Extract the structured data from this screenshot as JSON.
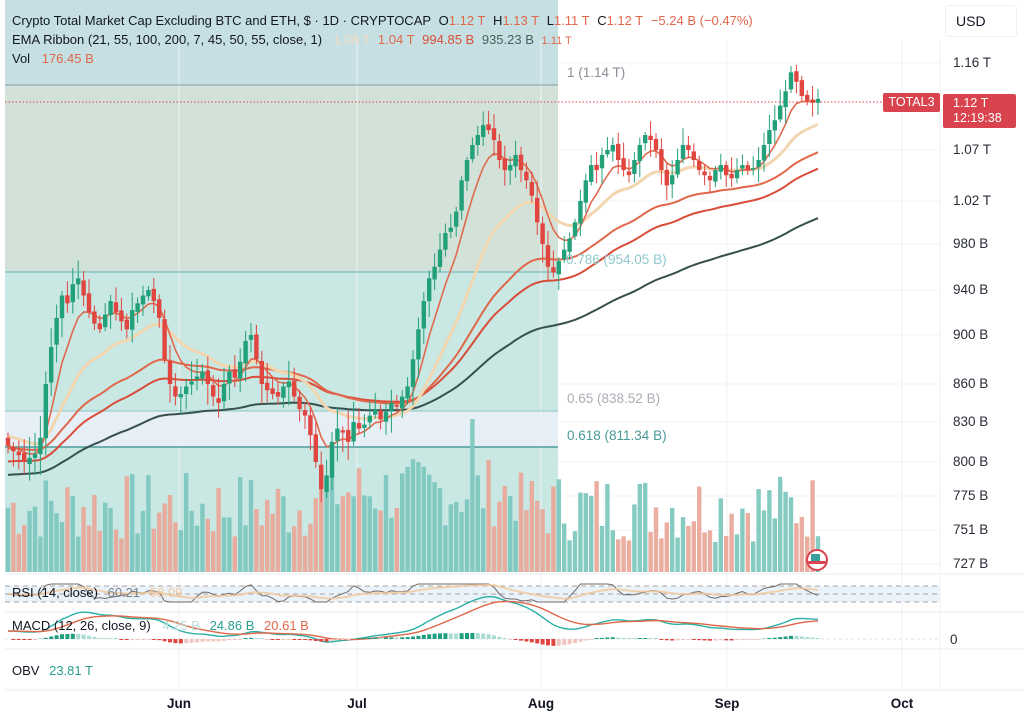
{
  "header": {
    "symbol_title": "Crypto Total Market Cap Excluding BTC and ETH, $ · 1D · CRYPTOCAP",
    "ohlc": {
      "o_label": "O",
      "o_value": "1.12 T",
      "h_label": "H",
      "h_value": "1.13 T",
      "l_label": "L",
      "l_value": "1.11 T",
      "c_label": "C",
      "c_value": "1.12 T",
      "change": "−5.24 B (−0.47%)"
    },
    "ema_ribbon": {
      "label": "EMA Ribbon (21, 55, 100, 200, 7, 45, 50, 55, close, 1)",
      "values": [
        "1.08 T",
        "1.04 T",
        "994.85 B",
        "935.23 B",
        "1.11 T"
      ]
    },
    "vol": {
      "label": "Vol",
      "value": "176.45 B"
    }
  },
  "currency_button": "USD",
  "price_axis": {
    "labels": [
      "1.16 T",
      "1.07 T",
      "1.02 T",
      "980 B",
      "940 B",
      "900 B",
      "860 B",
      "830 B",
      "800 B",
      "775 B",
      "751 B",
      "727 B"
    ]
  },
  "last_price_tag": {
    "symbol": "TOTAL3",
    "price": "1.12 T",
    "countdown": "12:19:38"
  },
  "fib_levels": [
    {
      "label": "1 (1.14 T)"
    },
    {
      "label": "0.786 (954.05 B)"
    },
    {
      "label": "0.65 (838.52 B)"
    },
    {
      "label": "0.618 (811.34 B)"
    }
  ],
  "rsi": {
    "label": "RSI (14, close)",
    "value": "60.21",
    "ma_value": "58.09"
  },
  "macd": {
    "label": "MACD (12, 26, close, 9)",
    "hist": "4.25 B",
    "macd": "24.86 B",
    "signal": "20.61 B",
    "zero_label": "0"
  },
  "obv": {
    "label": "OBV",
    "value": "23.81 T"
  },
  "time_axis": {
    "labels": [
      "Jun",
      "Jul",
      "Aug",
      "Sep",
      "Oct"
    ]
  },
  "colors": {
    "up": "#22a07a",
    "down": "#e0453f",
    "vol_up": "#7ec8bf",
    "vol_down": "#e9a99a",
    "ema_fast": "#e06a4f",
    "ema_slow_cream": "#f2d6b0",
    "ema_mid": "#e0674a",
    "ema_100": "#d94d3a",
    "ema_200": "#37504d",
    "price_tag": "#d9434e"
  },
  "chart_data": {
    "type": "candlestick",
    "title": "Crypto Total Market Cap Excluding BTC and ETH (TOTAL3), 1D",
    "xlabel": "",
    "ylabel": "USD",
    "x_ticks": [
      "Jun",
      "Jul",
      "Aug",
      "Sep",
      "Oct"
    ],
    "y_ticks": [
      "727 B",
      "751 B",
      "775 B",
      "800 B",
      "830 B",
      "860 B",
      "900 B",
      "940 B",
      "980 B",
      "1.02 T",
      "1.07 T",
      "1.16 T"
    ],
    "ylim": [
      715,
      1175
    ],
    "closes_billion": [
      812,
      808,
      805,
      800,
      803,
      806,
      818,
      860,
      890,
      915,
      935,
      928,
      945,
      950,
      935,
      920,
      910,
      905,
      918,
      930,
      920,
      912,
      905,
      922,
      928,
      935,
      940,
      930,
      915,
      880,
      860,
      850,
      852,
      858,
      862,
      866,
      870,
      860,
      850,
      845,
      860,
      870,
      865,
      878,
      895,
      900,
      880,
      860,
      855,
      852,
      850,
      858,
      862,
      850,
      840,
      835,
      820,
      800,
      780,
      790,
      815,
      825,
      822,
      815,
      830,
      825,
      828,
      835,
      840,
      832,
      838,
      845,
      842,
      850,
      858,
      880,
      905,
      930,
      950,
      960,
      975,
      990,
      995,
      1010,
      1040,
      1060,
      1075,
      1085,
      1095,
      1090,
      1080,
      1060,
      1050,
      1055,
      1065,
      1050,
      1040,
      1025,
      1000,
      980,
      960,
      955,
      965,
      975,
      985,
      1000,
      1020,
      1040,
      1055,
      1050,
      1065,
      1070,
      1075,
      1060,
      1050,
      1045,
      1060,
      1075,
      1085,
      1080,
      1070,
      1050,
      1035,
      1045,
      1060,
      1075,
      1070,
      1060,
      1050,
      1045,
      1040,
      1050,
      1055,
      1045,
      1042,
      1050,
      1055,
      1050,
      1052,
      1060,
      1075,
      1090,
      1100,
      1115,
      1130,
      1150,
      1140,
      1125,
      1120,
      1118,
      1122
    ],
    "volume_billion_hint": "volume bars 80–260 B; up-day teal, down-day salmon",
    "ema_lines": [
      {
        "name": "EMA 21",
        "last": "1.08 T"
      },
      {
        "name": "EMA 55",
        "last": "1.04 T"
      },
      {
        "name": "EMA 100",
        "last": "994.85 B"
      },
      {
        "name": "EMA 200",
        "last": "935.23 B"
      },
      {
        "name": "EMA 7",
        "last": "1.11 T"
      }
    ],
    "fibonacci": [
      {
        "level": 1,
        "price": "1.14 T"
      },
      {
        "level": 0.786,
        "price": "954.05 B"
      },
      {
        "level": 0.65,
        "price": "838.52 B"
      },
      {
        "level": 0.618,
        "price": "811.34 B"
      }
    ],
    "last": {
      "open": "1.12 T",
      "high": "1.13 T",
      "low": "1.11 T",
      "close": "1.12 T",
      "change": "−5.24 B",
      "change_pct": "−0.47%"
    },
    "indicators": {
      "rsi": {
        "period": 14,
        "value": 60.21,
        "ma": 58.09
      },
      "macd": {
        "fast": 12,
        "slow": 26,
        "signal": 9,
        "hist": "4.25 B",
        "macd": "24.86 B",
        "signal_value": "20.61 B"
      },
      "obv": "23.81 T"
    }
  }
}
